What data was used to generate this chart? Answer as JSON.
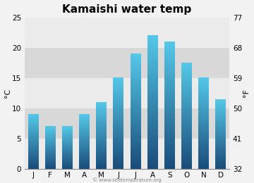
{
  "title": "Kamaishi water temp",
  "months": [
    "J",
    "F",
    "M",
    "A",
    "M",
    "J",
    "J",
    "A",
    "S",
    "O",
    "N",
    "D"
  ],
  "values_c": [
    9,
    7,
    7,
    9,
    11,
    15,
    19,
    22,
    21,
    17.5,
    15,
    11.5
  ],
  "ylabel_left": "°C",
  "ylabel_right": "°F",
  "ylim_c": [
    0,
    25
  ],
  "yticks_c": [
    0,
    5,
    10,
    15,
    20,
    25
  ],
  "yticks_f": [
    32,
    41,
    50,
    59,
    68,
    77
  ],
  "background_color": "#f2f2f2",
  "plot_bg_color_light": "#ebebeb",
  "plot_bg_color_dark": "#d8d8d8",
  "bar_color_top": "#55c8e8",
  "bar_color_bottom": "#1a4c7a",
  "watermark": "© www.seatemperature.org",
  "title_fontsize": 11,
  "tick_fontsize": 7.5,
  "label_fontsize": 8
}
